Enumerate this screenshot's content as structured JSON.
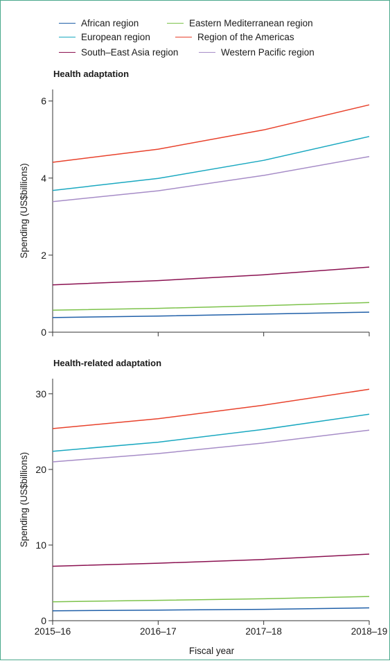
{
  "legend": [
    {
      "name": "African region",
      "color": "#1f5fa8"
    },
    {
      "name": "Eastern Mediterranean region",
      "color": "#7cc24a"
    },
    {
      "name": "European region",
      "color": "#19a8c0"
    },
    {
      "name": "Region of the Americas",
      "color": "#e8412b"
    },
    {
      "name": "South–East Asia region",
      "color": "#8a1050"
    },
    {
      "name": "Western Pacific region",
      "color": "#a68cc7"
    }
  ],
  "x_axis": {
    "label": "Fiscal year"
  },
  "chart_data": [
    {
      "type": "line",
      "title": "Health adaptation",
      "ylabel": "Spending (US$billions)",
      "xlabel": "",
      "categories": [
        "2015–16",
        "2016–17",
        "2017–18",
        "2018–19"
      ],
      "ylim": [
        0,
        6.3
      ],
      "yticks": [
        0,
        2,
        4,
        6
      ],
      "series": [
        {
          "name": "African region",
          "color": "#1f5fa8",
          "values": [
            0.38,
            0.42,
            0.47,
            0.52
          ]
        },
        {
          "name": "Eastern Mediterranean region",
          "color": "#7cc24a",
          "values": [
            0.57,
            0.62,
            0.69,
            0.77
          ]
        },
        {
          "name": "European region",
          "color": "#19a8c0",
          "values": [
            3.68,
            3.99,
            4.46,
            5.08
          ]
        },
        {
          "name": "Region of the Americas",
          "color": "#e8412b",
          "values": [
            4.41,
            4.75,
            5.25,
            5.9
          ]
        },
        {
          "name": "South–East Asia region",
          "color": "#8a1050",
          "values": [
            1.23,
            1.34,
            1.49,
            1.69
          ]
        },
        {
          "name": "Western Pacific region",
          "color": "#a68cc7",
          "values": [
            3.39,
            3.67,
            4.07,
            4.56
          ]
        }
      ]
    },
    {
      "type": "line",
      "title": "Health-related adaptation",
      "ylabel": "Spending (US$billions)",
      "xlabel": "Fiscal year",
      "categories": [
        "2015–16",
        "2016–17",
        "2017–18",
        "2018–19"
      ],
      "ylim": [
        0,
        32
      ],
      "yticks": [
        0,
        10,
        20,
        30
      ],
      "series": [
        {
          "name": "African region",
          "color": "#1f5fa8",
          "values": [
            1.3,
            1.4,
            1.5,
            1.7
          ]
        },
        {
          "name": "Eastern Mediterranean region",
          "color": "#7cc24a",
          "values": [
            2.5,
            2.7,
            2.9,
            3.2
          ]
        },
        {
          "name": "European region",
          "color": "#19a8c0",
          "values": [
            22.4,
            23.6,
            25.3,
            27.3
          ]
        },
        {
          "name": "Region of the Americas",
          "color": "#e8412b",
          "values": [
            25.4,
            26.7,
            28.5,
            30.6
          ]
        },
        {
          "name": "South–East Asia region",
          "color": "#8a1050",
          "values": [
            7.2,
            7.6,
            8.1,
            8.8
          ]
        },
        {
          "name": "Western Pacific region",
          "color": "#a68cc7",
          "values": [
            21.0,
            22.1,
            23.5,
            25.2
          ]
        }
      ]
    }
  ]
}
